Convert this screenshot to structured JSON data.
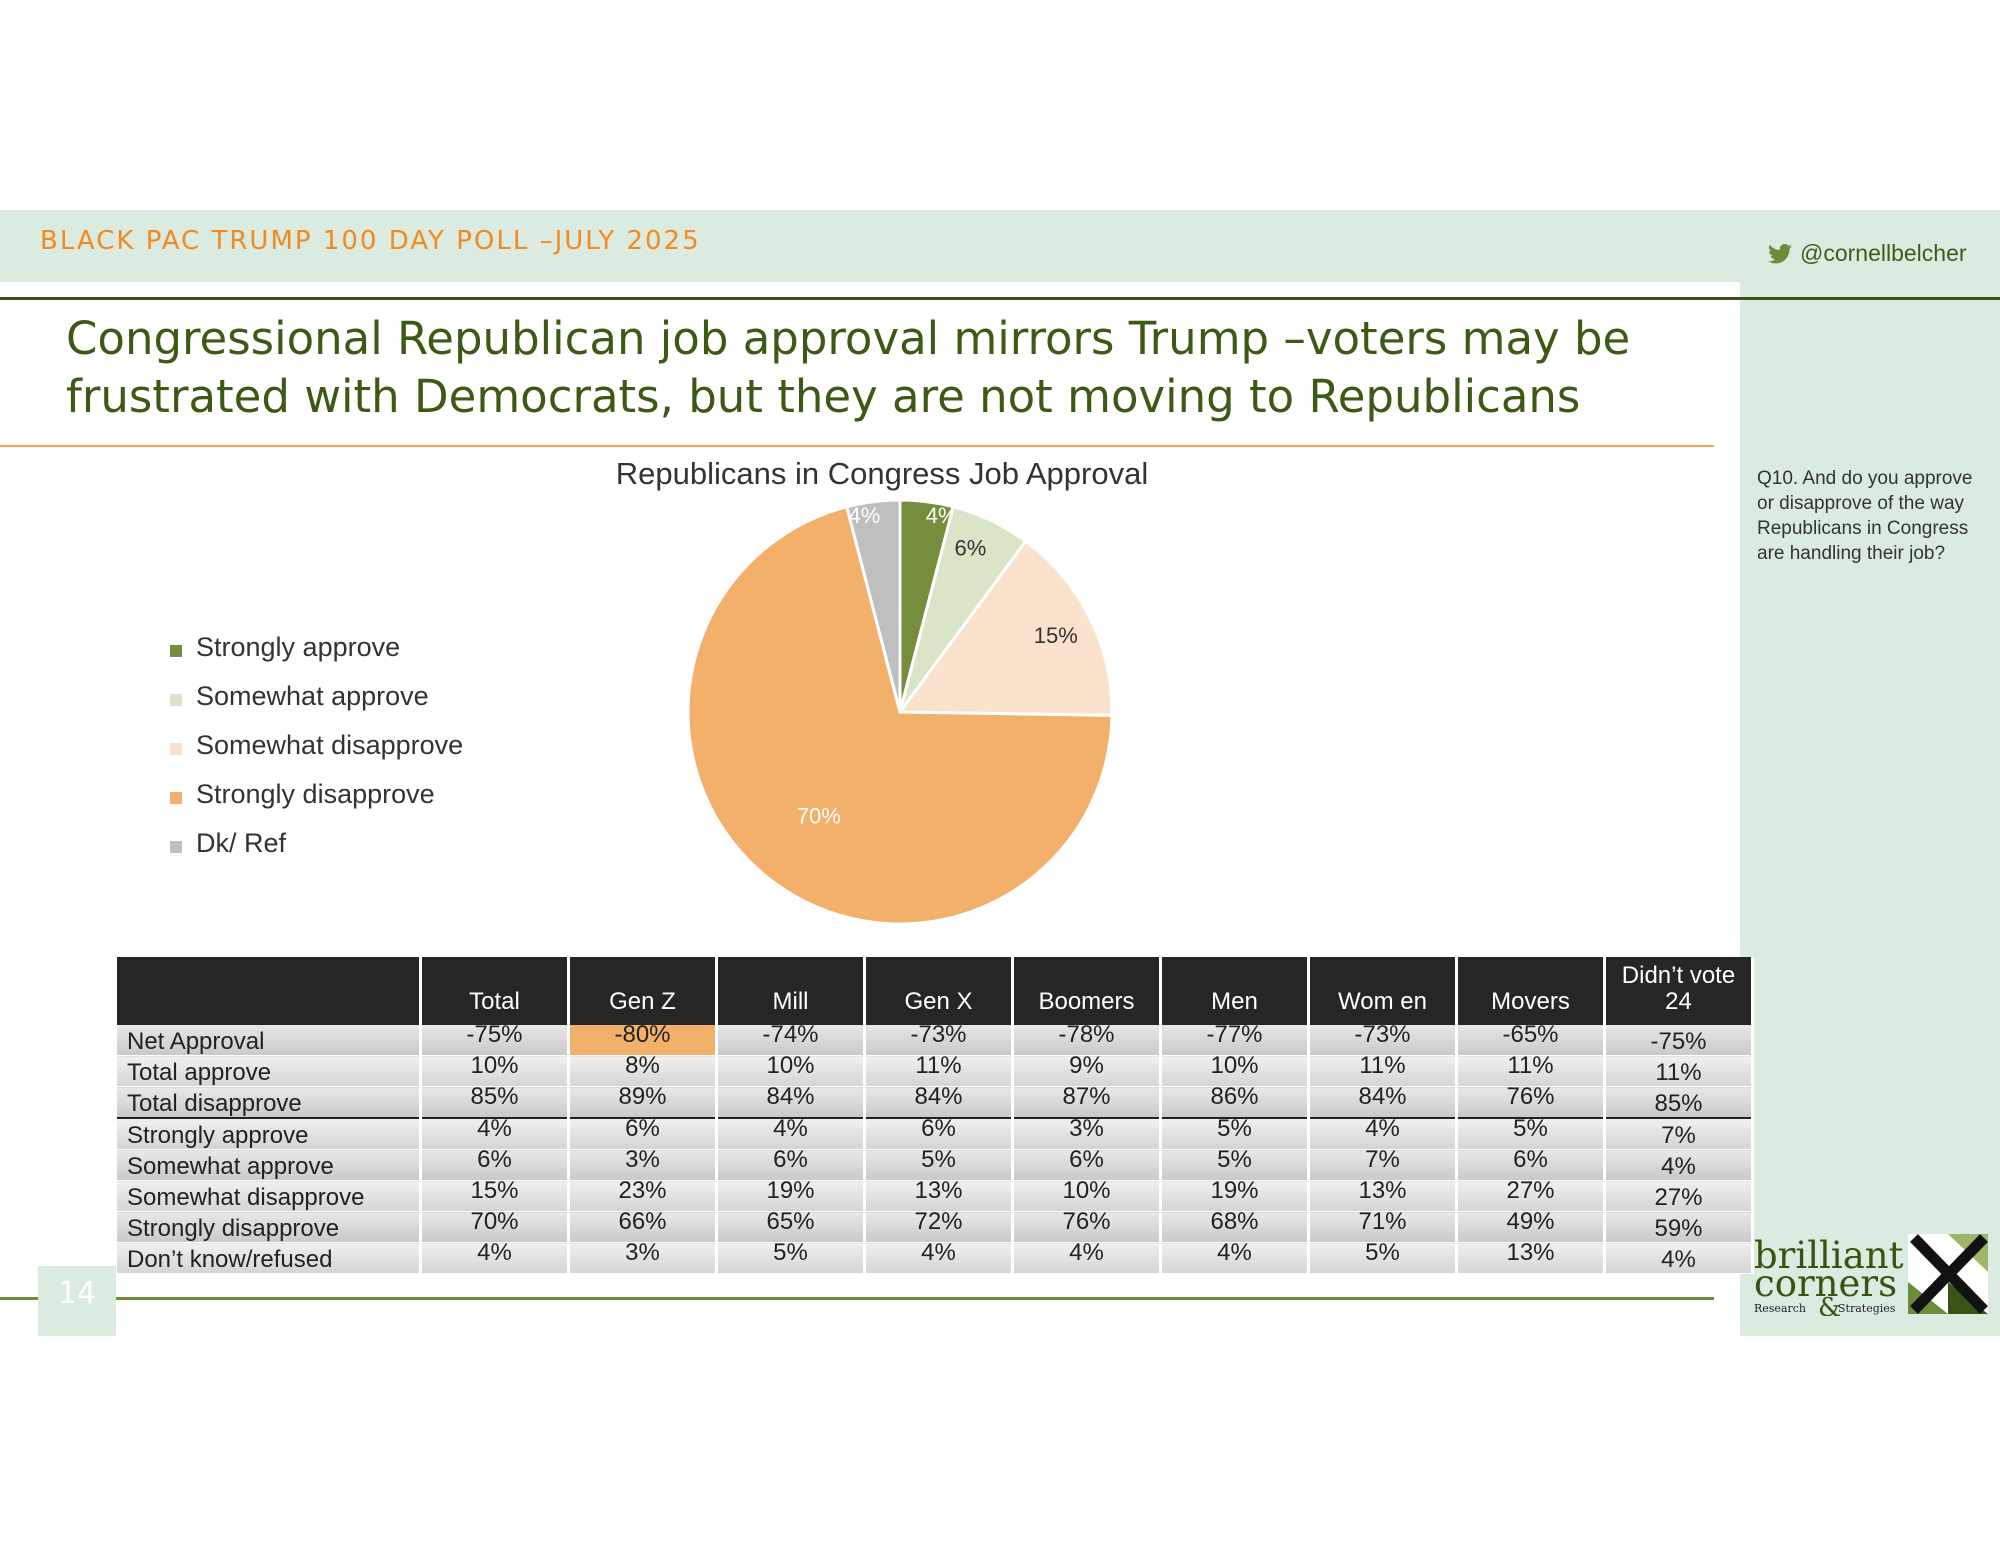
{
  "header": {
    "poll_title": "BLACK PAC TRUMP 100 DAY POLL –JULY 2025",
    "twitter_handle": "@cornellbelcher"
  },
  "headline": "Congressional Republican job approval mirrors Trump –voters may be frustrated with Democrats, but they are not moving to Republicans",
  "question": "Q10. And do you approve or disapprove of the way Republicans in Congress are handling their job?",
  "chart_data": {
    "type": "pie",
    "title": "Republicans in Congress Job Approval",
    "slices": [
      {
        "name": "Strongly approve",
        "value": 4,
        "label": "4%",
        "color": "#768d3e"
      },
      {
        "name": "Somewhat approve",
        "value": 6,
        "label": "6%",
        "color": "#d9e5c6"
      },
      {
        "name": "Somewhat disapprove",
        "value": 15,
        "label": "15%",
        "color": "#fbe2cc"
      },
      {
        "name": "Strongly disapprove",
        "value": 70,
        "label": "70%",
        "color": "#f2b06b"
      },
      {
        "name": "Dk/ Ref",
        "value": 4,
        "label": "4%",
        "color": "#bfbfbf"
      }
    ],
    "legend_position": "left"
  },
  "table": {
    "columns": [
      "Total",
      "Gen Z",
      "Mill",
      "Gen X",
      "Boomers",
      "Men",
      "Wom en",
      "Movers",
      "Didn’t vote 24"
    ],
    "rows": [
      {
        "label": "Net Approval",
        "values": [
          "-75%",
          "-80%",
          "-74%",
          "-73%",
          "-78%",
          "-77%",
          "-73%",
          "-65%",
          "-75%"
        ]
      },
      {
        "label": "Total approve",
        "values": [
          "10%",
          "8%",
          "10%",
          "11%",
          "9%",
          "10%",
          "11%",
          "11%",
          "11%"
        ]
      },
      {
        "label": "Total disapprove",
        "values": [
          "85%",
          "89%",
          "84%",
          "84%",
          "87%",
          "86%",
          "84%",
          "76%",
          "85%"
        ]
      },
      {
        "label": "Strongly approve",
        "values": [
          "4%",
          "6%",
          "4%",
          "6%",
          "3%",
          "5%",
          "4%",
          "5%",
          "7%"
        ]
      },
      {
        "label": "Somewhat approve",
        "values": [
          "6%",
          "3%",
          "6%",
          "5%",
          "6%",
          "5%",
          "7%",
          "6%",
          "4%"
        ]
      },
      {
        "label": "Somewhat disapprove",
        "values": [
          "15%",
          "23%",
          "19%",
          "13%",
          "10%",
          "19%",
          "13%",
          "27%",
          "27%"
        ]
      },
      {
        "label": "Strongly disapprove",
        "values": [
          "70%",
          "66%",
          "65%",
          "72%",
          "76%",
          "68%",
          "71%",
          "49%",
          "59%"
        ]
      },
      {
        "label": "Don’t know/refused",
        "values": [
          "4%",
          "3%",
          "5%",
          "4%",
          "4%",
          "4%",
          "5%",
          "13%",
          "4%"
        ]
      }
    ]
  },
  "footer": {
    "page_number": "14",
    "logo": {
      "line1": "brilliant",
      "line2": "corners",
      "line3a": "Research",
      "amp": "&",
      "line3b": "Strategies"
    }
  }
}
